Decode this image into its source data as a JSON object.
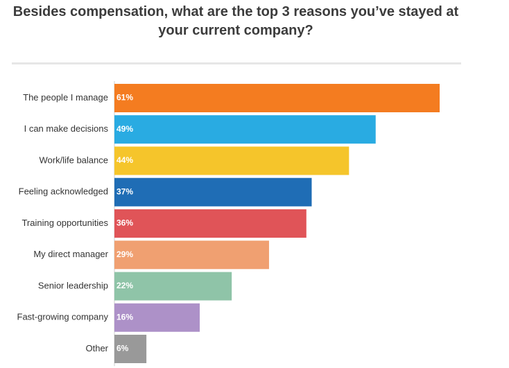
{
  "chart_data": {
    "type": "bar",
    "orientation": "horizontal",
    "title": "Besides compensation, what are the top 3 reasons you’ve stayed at your current company?",
    "categories": [
      "The people I manage",
      "I can make decisions",
      "Work/life balance",
      "Feeling acknowledged",
      "Training opportunities",
      "My direct manager",
      "Senior leadership",
      "Fast-growing company",
      "Other"
    ],
    "values": [
      61,
      49,
      44,
      37,
      36,
      29,
      22,
      16,
      6
    ],
    "value_labels": [
      "61%",
      "49%",
      "44%",
      "37%",
      "36%",
      "29%",
      "22%",
      "16%",
      "6%"
    ],
    "colors": [
      "#f47c20",
      "#29abe2",
      "#f5c52b",
      "#1f6db5",
      "#e05458",
      "#f0a071",
      "#8fc4a8",
      "#ad91c8",
      "#999999"
    ],
    "unit": "%",
    "xlim": [
      0,
      61
    ],
    "grid": false,
    "legend": "none"
  }
}
